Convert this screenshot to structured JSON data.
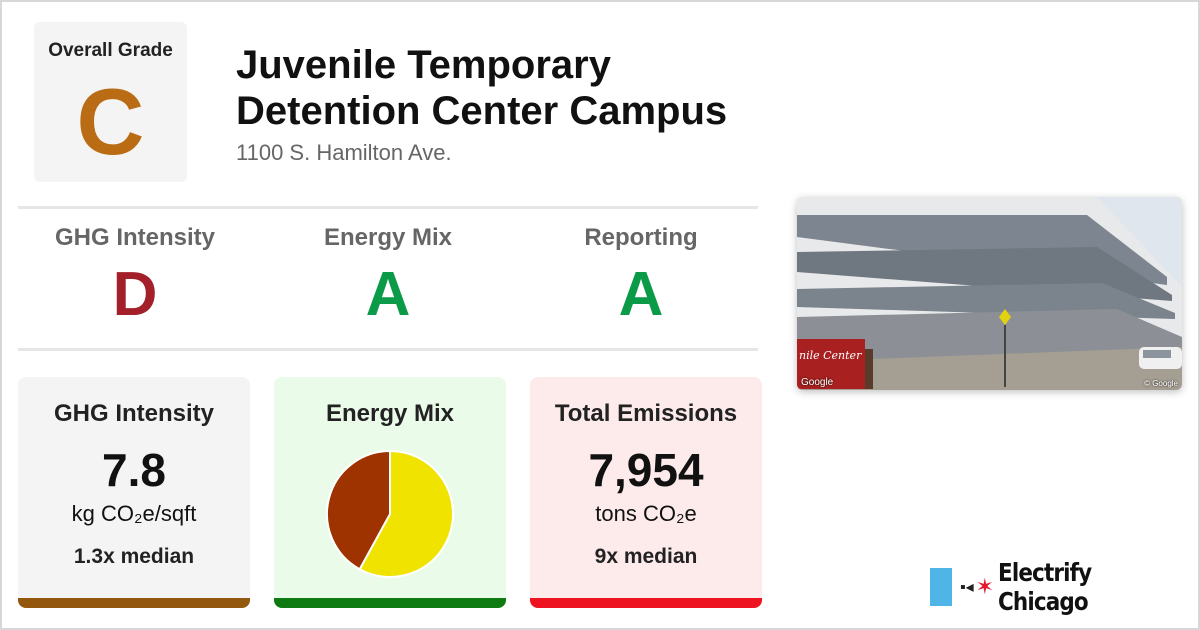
{
  "overall": {
    "label": "Overall Grade",
    "grade": "C",
    "color": "#b96c14"
  },
  "building": {
    "title_line1": "Juvenile Temporary",
    "title_line2": "Detention Center Campus",
    "address": "1100 S. Hamilton Ave."
  },
  "grades": [
    {
      "label": "GHG Intensity",
      "grade": "D",
      "color": "#a3202a"
    },
    {
      "label": "Energy Mix",
      "grade": "A",
      "color": "#0a9a48"
    },
    {
      "label": "Reporting",
      "grade": "A",
      "color": "#0a9a48"
    }
  ],
  "cards": {
    "ghg": {
      "title": "GHG Intensity",
      "value": "7.8",
      "unit": "kg CO₂e/sqft",
      "median": "1.3x median",
      "bar_color": "#93580e"
    },
    "mix": {
      "title": "Energy Mix",
      "bar_color": "#0e7a12"
    },
    "total": {
      "title": "Total Emissions",
      "value": "7,954",
      "unit": "tons CO₂e",
      "median": "9x median",
      "bar_color": "#ee1320"
    }
  },
  "chart_data": {
    "type": "pie",
    "title": "Energy Mix",
    "slices": [
      {
        "value": 58,
        "color": "#f0e300"
      },
      {
        "value": 42,
        "color": "#9e3300"
      }
    ]
  },
  "photo": {
    "credit": "Google",
    "credit_right": "© Google",
    "sign_text": "nile Center"
  },
  "brand": {
    "name": "Electrify Chicago",
    "plug_icon": "plug-icon",
    "star_icon": "star-icon",
    "flag_color": "#4fb5e6",
    "star_color": "#e3172b"
  }
}
